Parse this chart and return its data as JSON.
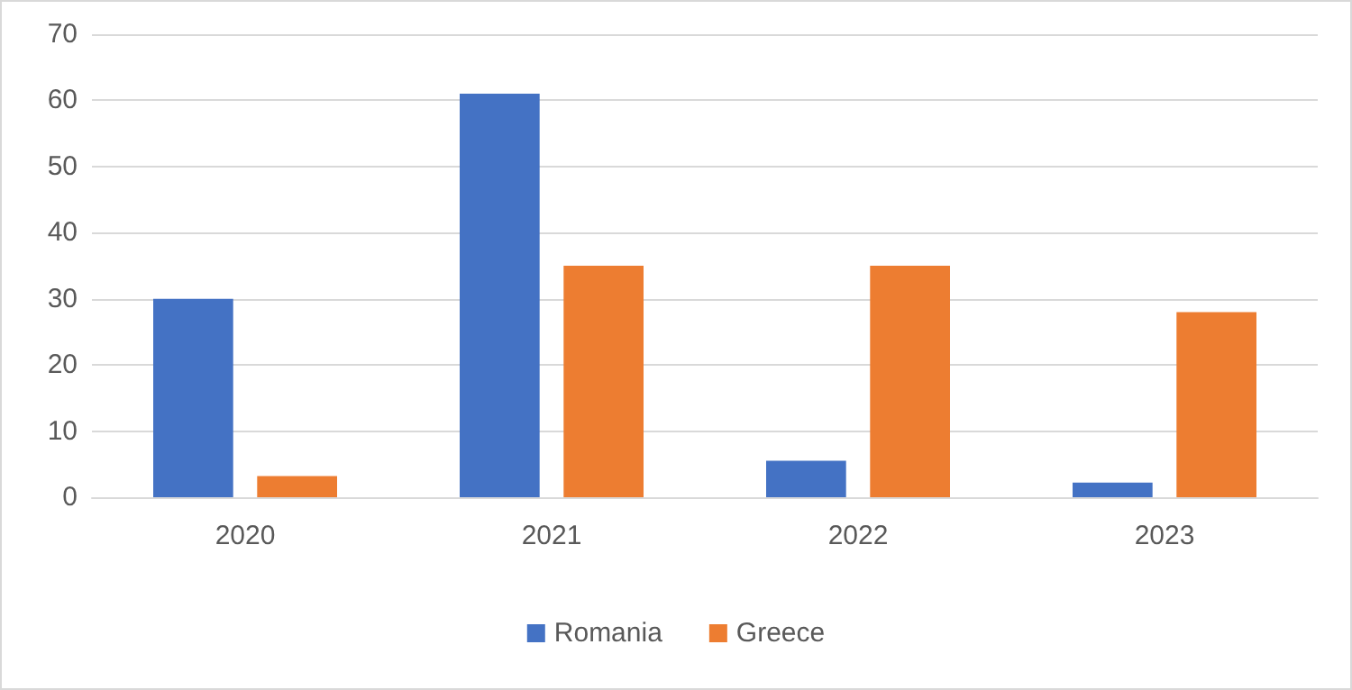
{
  "chart_data": {
    "type": "bar",
    "categories": [
      "2020",
      "2021",
      "2022",
      "2023"
    ],
    "series": [
      {
        "name": "Romania",
        "color": "#4472c4",
        "values": [
          30,
          61,
          5.5,
          2.2
        ]
      },
      {
        "name": "Greece",
        "color": "#ed7d31",
        "values": [
          3.2,
          35,
          35,
          28
        ]
      }
    ],
    "ylim": [
      0,
      70
    ],
    "yticks": [
      0,
      10,
      20,
      30,
      40,
      50,
      60,
      70
    ],
    "grid": "y",
    "legend": "bottom"
  }
}
